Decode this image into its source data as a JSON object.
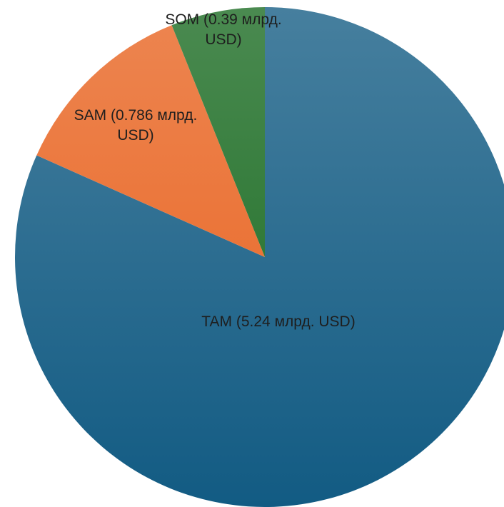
{
  "chart_data": {
    "type": "pie",
    "categories": [
      "TAM (5.24 млрд. USD)",
      "SAM (0.786 млрд. USD)",
      "SOM (0.39 млрд. USD)"
    ],
    "values": [
      5.24,
      0.786,
      0.39
    ],
    "colors": [
      "#125b83",
      "#e8621f",
      "#17691f"
    ]
  }
}
